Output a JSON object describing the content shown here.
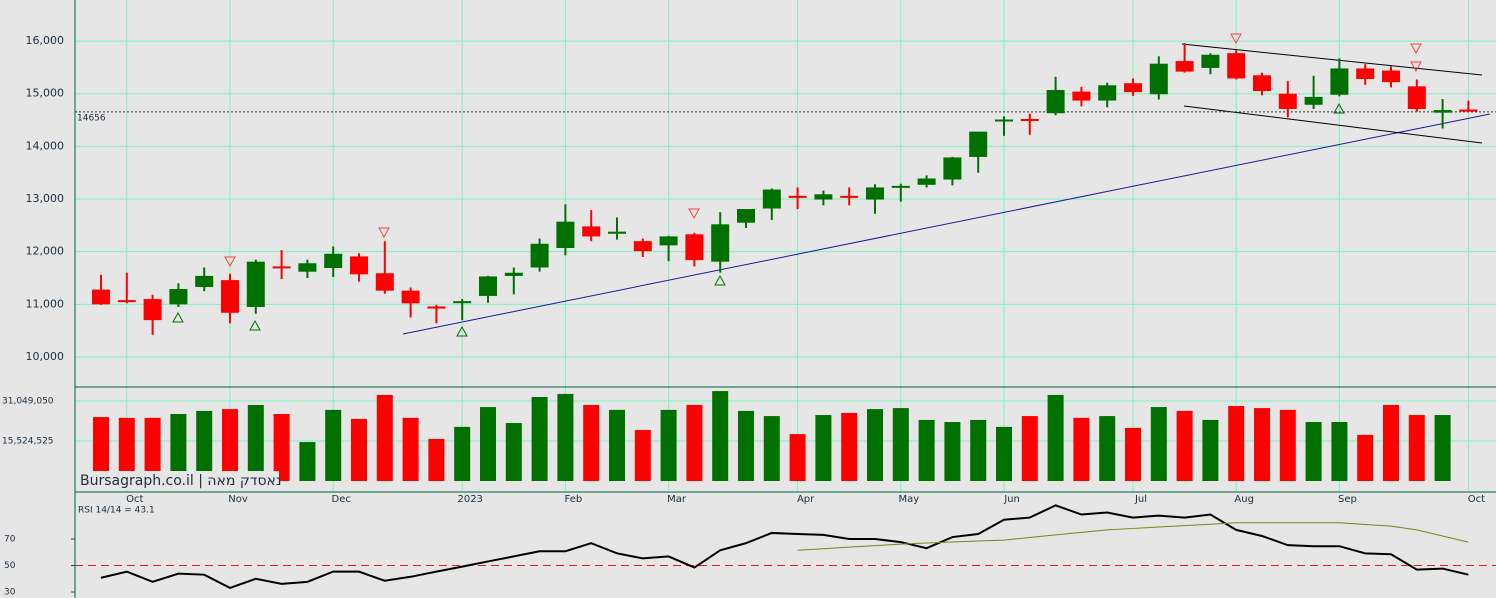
{
  "chart_data": [
    {
      "type": "candlestick",
      "open": [
        11280,
        11080,
        11100,
        11000,
        11330,
        11460,
        10950,
        11720,
        11620,
        11690,
        11910,
        11590,
        11260,
        10960,
        11030,
        11160,
        11540,
        11700,
        12070,
        12480,
        12340,
        12200,
        12120,
        12330,
        11810,
        12550,
        12820,
        13060,
        12990,
        13060,
        12990,
        13230,
        13270,
        13370,
        13800,
        14480,
        14520,
        14630,
        15040,
        14870,
        15200,
        14990,
        15620,
        15490,
        15770,
        15350,
        15000,
        14790,
        14980,
        15480,
        15440,
        15140,
        14640,
        14700
      ],
      "high": [
        11560,
        11600,
        11180,
        11400,
        11700,
        11580,
        11850,
        12030,
        11850,
        12100,
        11970,
        12200,
        11320,
        10990,
        11100,
        11540,
        11700,
        12250,
        12900,
        12790,
        12650,
        12250,
        12300,
        12360,
        12750,
        12810,
        13200,
        13220,
        13160,
        13220,
        13280,
        13290,
        13450,
        13800,
        14280,
        14570,
        14620,
        15320,
        15130,
        15210,
        15290,
        15710,
        15960,
        15770,
        15830,
        15400,
        15240,
        15340,
        15670,
        15560,
        15520,
        15270,
        14900,
        14870
      ],
      "low": [
        10990,
        11020,
        10420,
        10950,
        11250,
        10640,
        10820,
        11480,
        11500,
        11520,
        11430,
        11200,
        10750,
        10640,
        10700,
        11030,
        11190,
        11620,
        11930,
        12200,
        12230,
        11900,
        11820,
        11720,
        11600,
        12450,
        12600,
        12810,
        12880,
        12880,
        12720,
        12950,
        13220,
        13260,
        13500,
        14200,
        14220,
        14590,
        14760,
        14740,
        14960,
        14890,
        15400,
        15370,
        15270,
        14970,
        14550,
        14710,
        14950,
        15170,
        15120,
        14660,
        14340,
        14650
      ],
      "close": [
        11000,
        11060,
        10700,
        11290,
        11540,
        10840,
        11810,
        11690,
        11780,
        11960,
        11570,
        11260,
        11020,
        10920,
        11060,
        11530,
        11600,
        12150,
        12570,
        12290,
        12380,
        12010,
        12290,
        11840,
        12520,
        12810,
        13180,
        13040,
        13090,
        13030,
        13220,
        13250,
        13390,
        13790,
        14280,
        14510,
        14490,
        15070,
        14870,
        15160,
        15030,
        15570,
        15420,
        15740,
        15290,
        15050,
        14710,
        14940,
        15480,
        15280,
        15220,
        14710,
        14690,
        14670
      ],
      "up_color": "#007000",
      "down_color": "#ff0000",
      "ylim": [
        9430,
        16780
      ],
      "yticks": [
        {
          "value": 10000,
          "label": "10,000"
        },
        {
          "value": 11000,
          "label": "11,000"
        },
        {
          "value": 12000,
          "label": "12,000"
        },
        {
          "value": 13000,
          "label": "13,000"
        },
        {
          "value": 14000,
          "label": "14,000"
        },
        {
          "value": 15000,
          "label": "15,000"
        },
        {
          "value": 16000,
          "label": "16,000"
        }
      ],
      "xticks": [
        {
          "value": 1,
          "label": "Oct"
        },
        {
          "value": 5,
          "label": "Nov"
        },
        {
          "value": 9,
          "label": "Dec"
        },
        {
          "value": 14,
          "label": "2023"
        },
        {
          "value": 18,
          "label": "Feb"
        },
        {
          "value": 22,
          "label": "Mar"
        },
        {
          "value": 27,
          "label": "Apr"
        },
        {
          "value": 31,
          "label": "May"
        },
        {
          "value": 35,
          "label": "Jun"
        },
        {
          "value": 40,
          "label": "Jul"
        },
        {
          "value": 44,
          "label": "Aug"
        },
        {
          "value": 48,
          "label": "Sep"
        },
        {
          "value": 53,
          "label": "Oct"
        }
      ],
      "last_price": 14656,
      "grid": true,
      "watermark": "Bursagraph.co.il | נאסדק מאה"
    },
    {
      "type": "bar",
      "values": [
        24800000,
        24500000,
        24500000,
        26000000,
        27200000,
        27900000,
        29500000,
        26000000,
        15100000,
        27600000,
        24100000,
        33400000,
        24500000,
        16300000,
        21000000,
        28700000,
        22500000,
        32600000,
        33800000,
        29500000,
        27600000,
        19800000,
        27600000,
        29500000,
        34900000,
        27200000,
        25200000,
        18200000,
        25600000,
        26400000,
        27900000,
        28300000,
        23700000,
        22900000,
        23700000,
        21000000,
        25200000,
        33400000,
        24500000,
        25200000,
        20600000,
        28700000,
        27200000,
        23700000,
        29100000,
        28300000,
        27600000,
        22900000,
        22900000,
        17900000,
        29500000,
        25600000,
        25600000,
        null
      ],
      "ylim": [
        0,
        36480000
      ],
      "yticks": [
        {
          "value": 15524525,
          "label": "15,524,525"
        },
        {
          "value": 31049050,
          "label": "31,049,050"
        }
      ]
    },
    {
      "type": "line",
      "label": "RSI 14/14 = 43.1",
      "series": [
        {
          "name": "RSI",
          "color": "#000000",
          "values": [
            40.8,
            45.4,
            37.7,
            43.9,
            43.1,
            33.1,
            40.0,
            36.2,
            37.7,
            45.4,
            45.4,
            38.5,
            41.5,
            45.4,
            49.2,
            53.1,
            56.9,
            60.8,
            60.8,
            66.9,
            59.2,
            55.4,
            56.9,
            48.5,
            61.5,
            66.9,
            74.6,
            73.8,
            73.1,
            70.0,
            70.0,
            67.7,
            63.1,
            71.5,
            73.8,
            84.6,
            86.2,
            95.4,
            88.5,
            90.0,
            86.2,
            87.7,
            86.2,
            88.5,
            76.9,
            72.3,
            65.4,
            64.6,
            64.6,
            59.2,
            58.5,
            46.9,
            47.7,
            43.1
          ]
        },
        {
          "name": "Signal",
          "color": "#808020",
          "values": [
            null,
            null,
            null,
            null,
            null,
            null,
            null,
            null,
            null,
            null,
            null,
            null,
            null,
            null,
            null,
            null,
            null,
            null,
            null,
            null,
            null,
            null,
            null,
            null,
            null,
            null,
            null,
            61.5,
            62.7,
            63.9,
            65.0,
            66.2,
            67.0,
            67.8,
            68.5,
            69.2,
            71.2,
            73.1,
            75.0,
            76.9,
            78.0,
            79.1,
            80.1,
            81.2,
            82.3,
            82.3,
            82.3,
            82.3,
            82.3,
            81.0,
            79.7,
            76.9,
            72.3,
            67.7
          ]
        }
      ],
      "ylim": [
        25.5,
        105.5
      ],
      "yticks": [
        30,
        50,
        70
      ],
      "reference": 50
    }
  ]
}
